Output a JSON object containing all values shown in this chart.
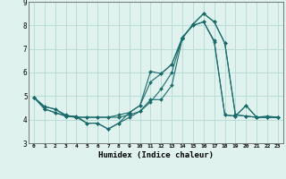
{
  "xlabel": "Humidex (Indice chaleur)",
  "ylabel": "",
  "bg_color": "#dff2ee",
  "grid_color": "#b8ddd6",
  "line_color": "#1a6b6b",
  "xlim": [
    -0.5,
    23.5
  ],
  "ylim": [
    3.0,
    9.0
  ],
  "xticks": [
    0,
    1,
    2,
    3,
    4,
    5,
    6,
    7,
    8,
    9,
    10,
    11,
    12,
    13,
    14,
    15,
    16,
    17,
    18,
    19,
    20,
    21,
    22,
    23
  ],
  "yticks": [
    3,
    4,
    5,
    6,
    7,
    8,
    9
  ],
  "series": [
    [
      4.95,
      4.55,
      4.45,
      4.15,
      4.1,
      3.85,
      3.85,
      3.6,
      3.85,
      4.1,
      4.35,
      4.85,
      4.85,
      5.45,
      7.45,
      8.05,
      8.5,
      8.15,
      7.25,
      4.2,
      4.15,
      4.1,
      4.1,
      4.1
    ],
    [
      4.95,
      4.55,
      4.45,
      4.2,
      4.1,
      4.1,
      4.1,
      4.1,
      4.1,
      4.2,
      4.35,
      4.75,
      5.3,
      6.0,
      7.5,
      8.0,
      8.15,
      7.3,
      4.2,
      4.15,
      4.6,
      4.1,
      4.1,
      4.1
    ],
    [
      4.95,
      4.45,
      4.3,
      4.15,
      4.15,
      3.85,
      3.85,
      3.6,
      3.85,
      4.3,
      4.6,
      6.05,
      5.95,
      6.35,
      7.45,
      8.05,
      8.5,
      8.15,
      7.25,
      4.2,
      4.15,
      4.1,
      4.1,
      4.1
    ],
    [
      4.95,
      4.45,
      4.3,
      4.15,
      4.1,
      4.1,
      4.1,
      4.1,
      4.2,
      4.3,
      4.6,
      5.6,
      5.95,
      6.35,
      7.5,
      8.0,
      8.15,
      7.35,
      4.2,
      4.15,
      4.6,
      4.1,
      4.15,
      4.1
    ]
  ]
}
